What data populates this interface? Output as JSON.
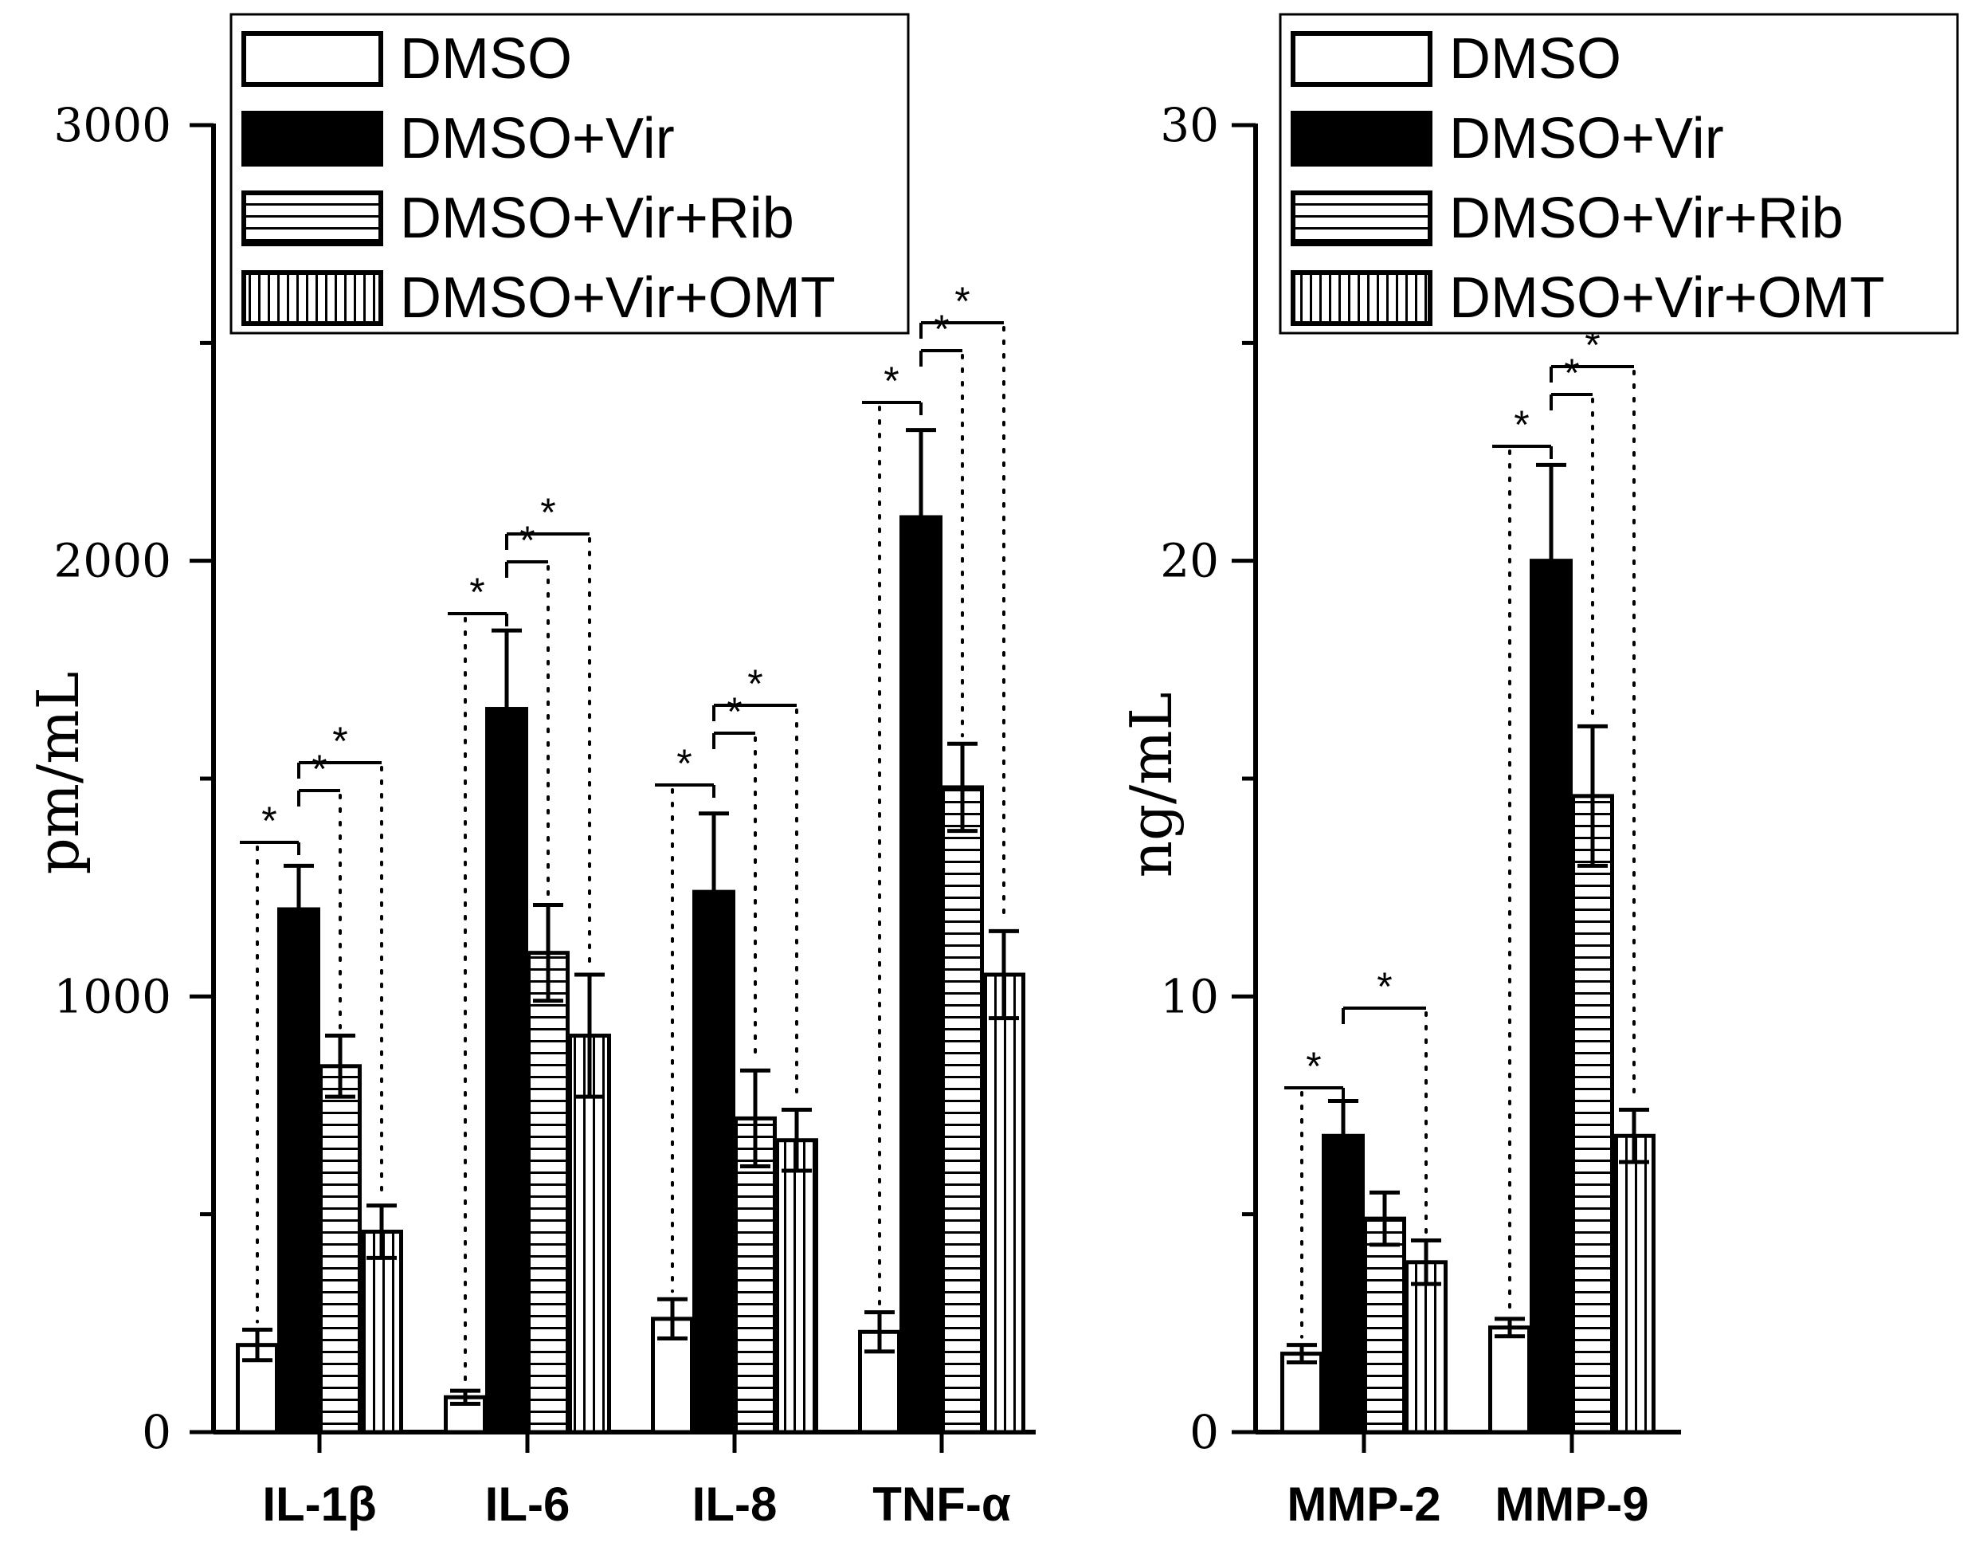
{
  "chart_data": [
    {
      "type": "bar",
      "ylabel": "pm/mL",
      "ylim": [
        0,
        3000
      ],
      "yticks": [
        0,
        1000,
        2000,
        3000
      ],
      "categories": [
        "IL-1β",
        "IL-6",
        "IL-8",
        "TNF-α"
      ],
      "series": [
        {
          "name": "DMSO",
          "pattern": "white",
          "values": [
            200,
            80,
            260,
            230
          ],
          "errors": [
            35,
            15,
            45,
            45
          ]
        },
        {
          "name": "DMSO+Vir",
          "pattern": "black",
          "values": [
            1200,
            1660,
            1240,
            2100
          ],
          "errors": [
            100,
            180,
            180,
            200
          ]
        },
        {
          "name": "DMSO+Vir+Rib",
          "pattern": "horizontal",
          "values": [
            840,
            1100,
            720,
            1480
          ],
          "errors": [
            70,
            110,
            110,
            100
          ]
        },
        {
          "name": "DMSO+Vir+OMT",
          "pattern": "vertical",
          "values": [
            460,
            910,
            670,
            1050
          ],
          "errors": [
            60,
            140,
            70,
            100
          ]
        }
      ],
      "significance": [
        {
          "category": 0,
          "from": 0,
          "to": 1,
          "label": "*"
        },
        {
          "category": 0,
          "from": 1,
          "to": 2,
          "label": "*"
        },
        {
          "category": 0,
          "from": 1,
          "to": 3,
          "label": "*"
        },
        {
          "category": 1,
          "from": 0,
          "to": 1,
          "label": "*"
        },
        {
          "category": 1,
          "from": 1,
          "to": 2,
          "label": "*"
        },
        {
          "category": 1,
          "from": 1,
          "to": 3,
          "label": "*"
        },
        {
          "category": 2,
          "from": 0,
          "to": 1,
          "label": "*"
        },
        {
          "category": 2,
          "from": 1,
          "to": 2,
          "label": "*"
        },
        {
          "category": 2,
          "from": 1,
          "to": 3,
          "label": "*"
        },
        {
          "category": 3,
          "from": 0,
          "to": 1,
          "label": "*"
        },
        {
          "category": 3,
          "from": 1,
          "to": 2,
          "label": "*"
        },
        {
          "category": 3,
          "from": 1,
          "to": 3,
          "label": "*"
        }
      ],
      "legend": [
        "DMSO",
        "DMSO+Vir",
        "DMSO+Vir+Rib",
        "DMSO+Vir+OMT"
      ],
      "legend_position": "top"
    },
    {
      "type": "bar",
      "ylabel": "ng/mL",
      "ylim": [
        0,
        30
      ],
      "yticks": [
        0,
        10,
        20,
        30
      ],
      "categories": [
        "MMP-2",
        "MMP-9"
      ],
      "series": [
        {
          "name": "DMSO",
          "pattern": "white",
          "values": [
            1.8,
            2.4
          ],
          "errors": [
            0.2,
            0.2
          ]
        },
        {
          "name": "DMSO+Vir",
          "pattern": "black",
          "values": [
            6.8,
            20.0
          ],
          "errors": [
            0.8,
            2.2
          ]
        },
        {
          "name": "DMSO+Vir+Rib",
          "pattern": "horizontal",
          "values": [
            4.9,
            14.6
          ],
          "errors": [
            0.6,
            1.6
          ]
        },
        {
          "name": "DMSO+Vir+OMT",
          "pattern": "vertical",
          "values": [
            3.9,
            6.8
          ],
          "errors": [
            0.5,
            0.6
          ]
        }
      ],
      "significance": [
        {
          "category": 0,
          "from": 0,
          "to": 1,
          "label": "*"
        },
        {
          "category": 0,
          "from": 1,
          "to": 3,
          "label": "*"
        },
        {
          "category": 1,
          "from": 0,
          "to": 1,
          "label": "*"
        },
        {
          "category": 1,
          "from": 1,
          "to": 2,
          "label": "*"
        },
        {
          "category": 1,
          "from": 1,
          "to": 3,
          "label": "*"
        }
      ],
      "legend": [
        "DMSO",
        "DMSO+Vir",
        "DMSO+Vir+Rib",
        "DMSO+Vir+OMT"
      ],
      "legend_position": "top"
    }
  ]
}
